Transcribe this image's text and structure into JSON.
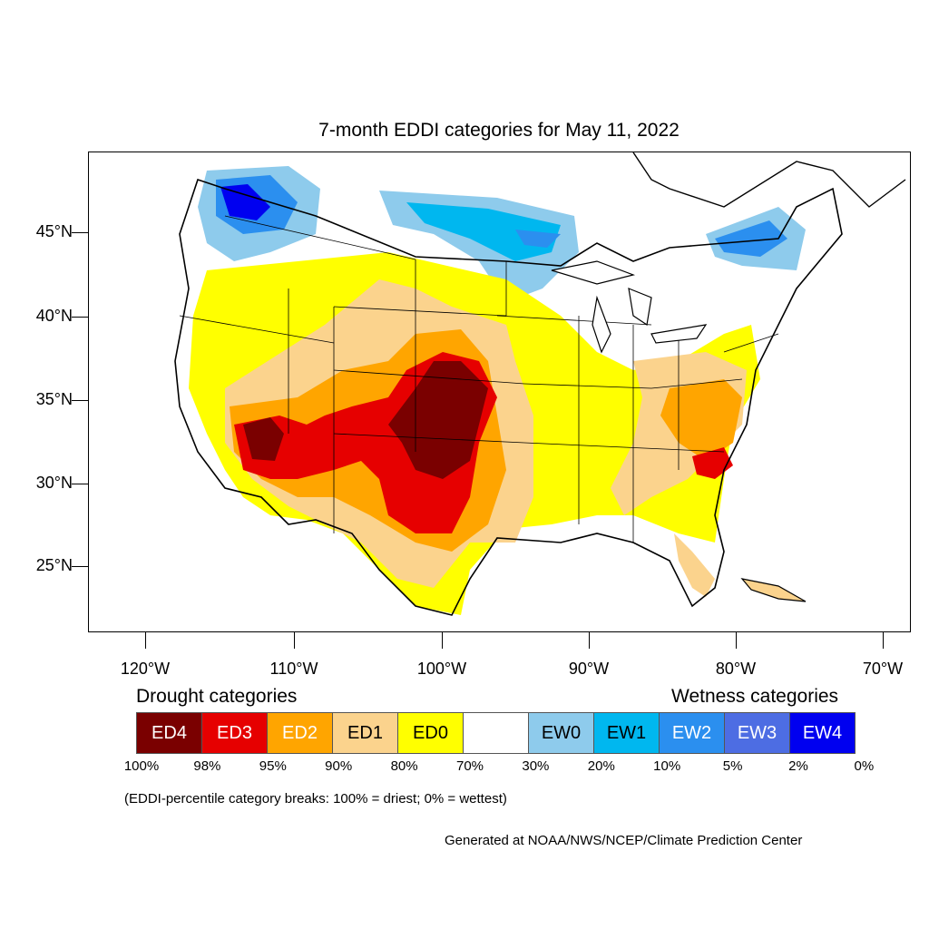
{
  "title": "7-month EDDI categories for May 11, 2022",
  "axes": {
    "lat_labels": [
      "45°N",
      "40°N",
      "35°N",
      "30°N",
      "25°N"
    ],
    "lon_labels": [
      "120°W",
      "110°W",
      "100°W",
      "90°W",
      "80°W",
      "70°W"
    ]
  },
  "legend": {
    "drought_heading": "Drought categories",
    "wetness_heading": "Wetness categories",
    "categories": [
      {
        "label": "ED4",
        "color": "#7a0000",
        "text_color": "#ffffff"
      },
      {
        "label": "ED3",
        "color": "#e60000",
        "text_color": "#ffffff"
      },
      {
        "label": "ED2",
        "color": "#ffa500",
        "text_color": "#ffffff"
      },
      {
        "label": "ED1",
        "color": "#fbd38d",
        "text_color": "#000000"
      },
      {
        "label": "ED0",
        "color": "#ffff00",
        "text_color": "#000000"
      },
      {
        "label": "",
        "color": "#ffffff",
        "text_color": "#000000"
      },
      {
        "label": "EW0",
        "color": "#8ecbec",
        "text_color": "#000000"
      },
      {
        "label": "EW1",
        "color": "#00b7ef",
        "text_color": "#000000"
      },
      {
        "label": "EW2",
        "color": "#2b8fef",
        "text_color": "#ffffff"
      },
      {
        "label": "EW3",
        "color": "#4d6de3",
        "text_color": "#ffffff"
      },
      {
        "label": "EW4",
        "color": "#0000f0",
        "text_color": "#ffffff"
      }
    ],
    "percentiles": [
      "100%",
      "98%",
      "95%",
      "90%",
      "80%",
      "70%",
      "30%",
      "20%",
      "10%",
      "5%",
      "2%",
      "0%"
    ]
  },
  "note": "(EDDI-percentile category breaks: 100% = driest; 0% = wettest)",
  "credit": "Generated at NOAA/NWS/NCEP/Climate Prediction Center"
}
